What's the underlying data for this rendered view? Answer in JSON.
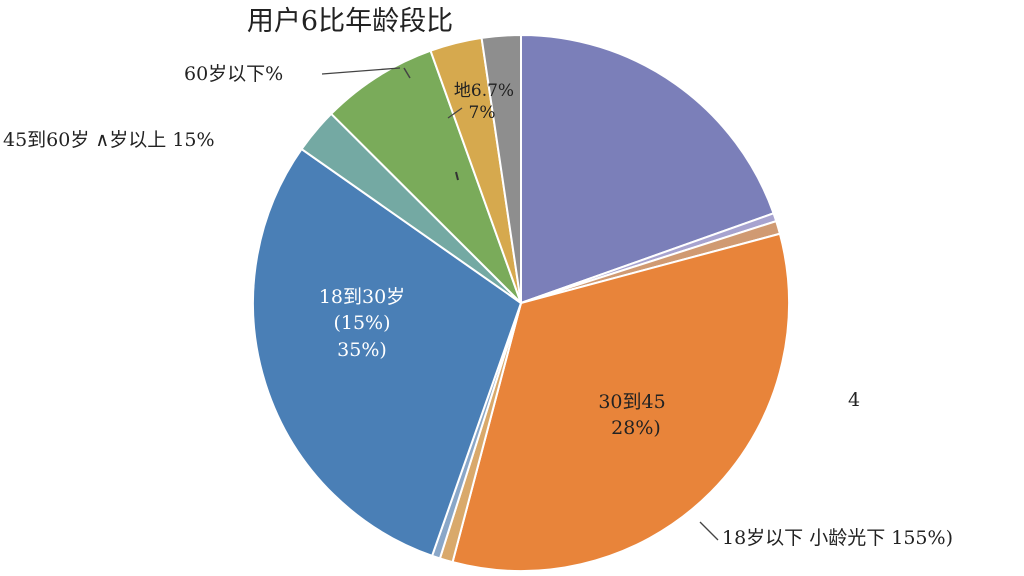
{
  "chart_data": {
    "type": "pie",
    "title": "用户6比年龄段比",
    "slices": [
      {
        "key": "purple",
        "value": 20.0,
        "color": "#7b7fb9"
      },
      {
        "key": "thin-lilac",
        "value": 0.5,
        "color": "#a7a3cf"
      },
      {
        "key": "thin-peach",
        "value": 0.8,
        "color": "#d09a72"
      },
      {
        "key": "orange",
        "value": 34.0,
        "color": "#e8843a"
      },
      {
        "key": "thin-sand",
        "value": 0.8,
        "color": "#d9a96b"
      },
      {
        "key": "thin-steel",
        "value": 0.5,
        "color": "#8aa7c8"
      },
      {
        "key": "blue",
        "value": 30.0,
        "color": "#4a7fb6"
      },
      {
        "key": "teal",
        "value": 2.8,
        "color": "#74a9a3"
      },
      {
        "key": "green",
        "value": 7.2,
        "color": "#7aab5a"
      },
      {
        "key": "gold",
        "value": 3.2,
        "color": "#d6a94e"
      },
      {
        "key": "gray",
        "value": 2.4,
        "color": "#8e8e8e"
      }
    ],
    "labels": {
      "blue_line1": "18到30岁",
      "blue_line2": "(15%)",
      "blue_line3": "35%)",
      "orange_line1": "30到45",
      "orange_line2": "28%)",
      "gray_line1": "地6.7%",
      "gray_line2": "7%",
      "callout_60": "60岁以下%",
      "callout_45": "45到60岁 ∧岁以上 15%",
      "callout_18": "18岁以下  小龄光下  155%)",
      "side_number": "4"
    }
  }
}
